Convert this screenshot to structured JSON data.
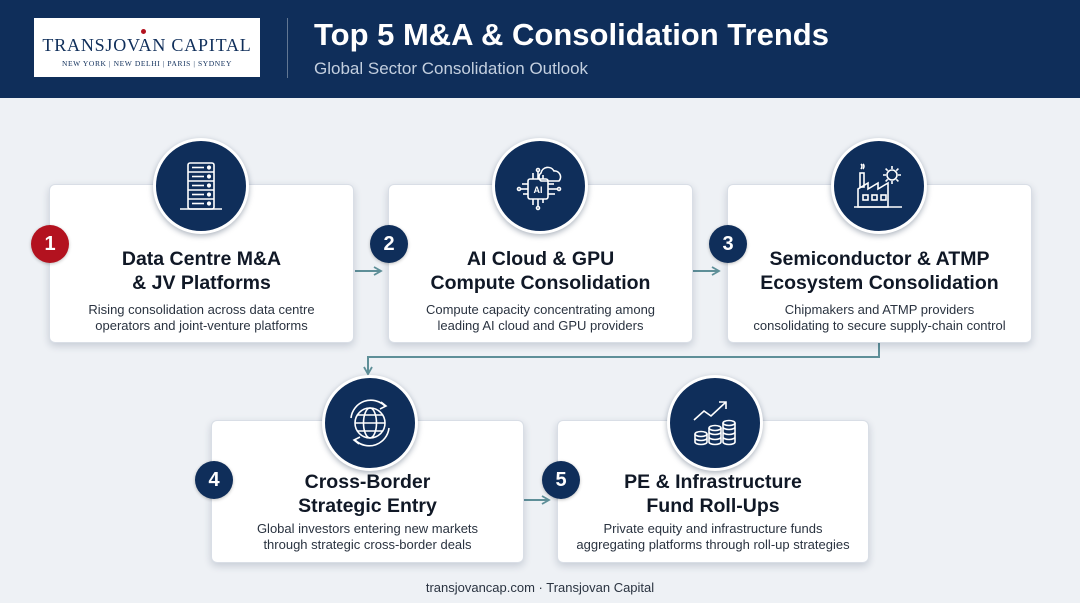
{
  "header": {
    "logo_name": "TRANSJOVAN CAPITAL",
    "logo_cities": "NEW YORK  |  NEW DELHI  |  PARIS  |  SYDNEY",
    "title": "Top 5 M&A & Consolidation Trends",
    "subtitle": "Global Sector Consolidation Outlook"
  },
  "trends": [
    {
      "number": "1",
      "icon": "data-centre-server-icon",
      "title_lines": [
        "Data Centre M&A",
        "& JV Platforms"
      ],
      "desc_lines": [
        "Rising consolidation across data centre",
        "operators and joint-venture platforms"
      ]
    },
    {
      "number": "2",
      "icon": "ai-chip-cloud-icon",
      "icon_text": "AI",
      "title_lines": [
        "AI Cloud & GPU",
        "Compute Consolidation"
      ],
      "desc_lines": [
        "Compute capacity concentrating among",
        "leading AI cloud and GPU providers"
      ]
    },
    {
      "number": "3",
      "icon": "factory-gear-icon",
      "title_lines": [
        "Semiconductor & ATMP",
        "Ecosystem Consolidation"
      ],
      "desc_lines": [
        "Chipmakers and ATMP providers",
        "consolidating to secure supply-chain control"
      ]
    },
    {
      "number": "4",
      "icon": "globe-arrows-icon",
      "title_lines": [
        "Cross-Border",
        "Strategic Entry"
      ],
      "desc_lines": [
        "Global investors entering new markets",
        "through strategic cross-border deals"
      ]
    },
    {
      "number": "5",
      "icon": "coin-stack-growth-icon",
      "title_lines": [
        "PE & Infrastructure",
        "Fund Roll-Ups"
      ],
      "desc_lines": [
        "Private equity and infrastructure funds",
        "aggregating platforms through roll-up strategies"
      ]
    }
  ],
  "footer": "transjovancap.com · Transjovan Capital",
  "colors": {
    "navy": "#0f2e5a",
    "accent_red": "#b3121f",
    "connector": "#5e8f98"
  }
}
